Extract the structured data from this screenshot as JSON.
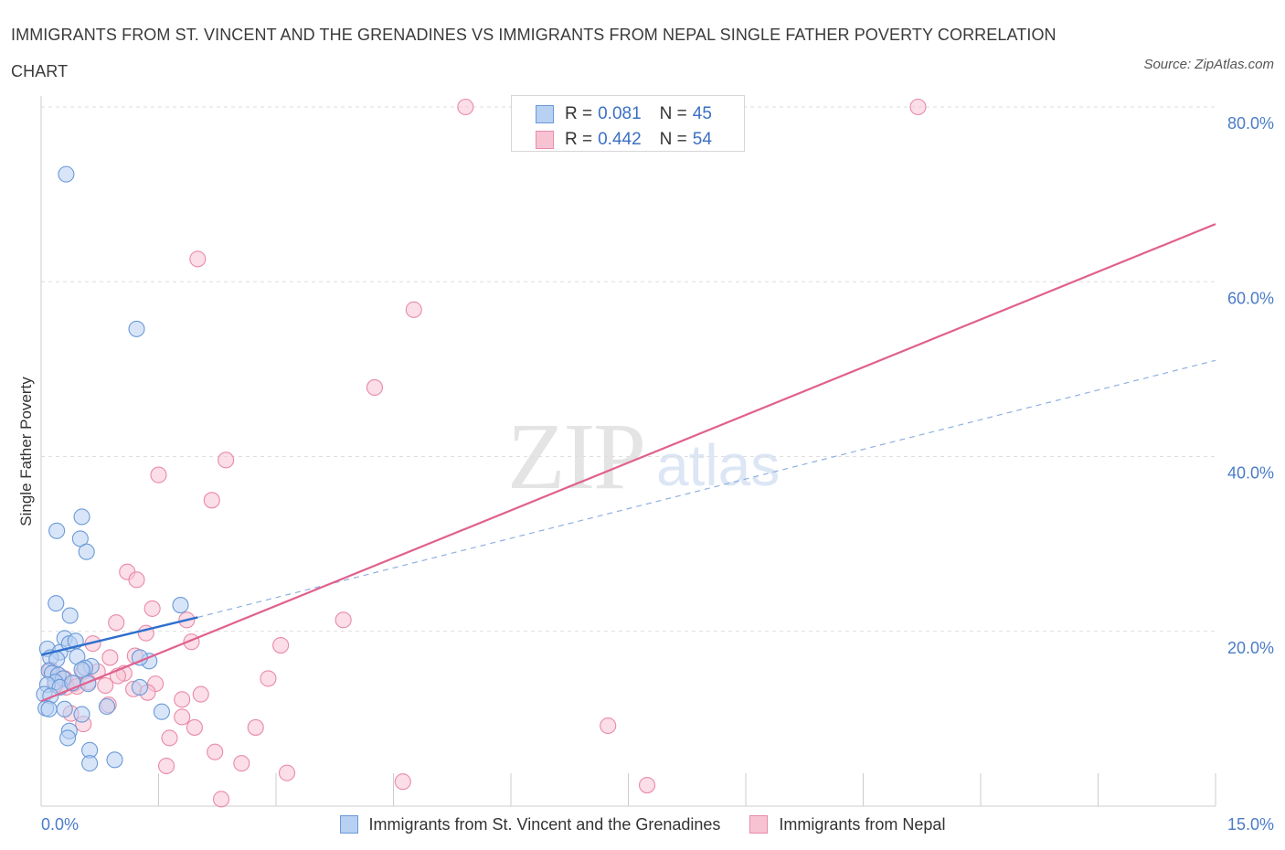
{
  "title": "IMMIGRANTS FROM ST. VINCENT AND THE GRENADINES VS IMMIGRANTS FROM NEPAL SINGLE FATHER POVERTY CORRELATION CHART",
  "source": "Source: ZipAtlas.com",
  "watermark": {
    "zip": "ZIP",
    "atlas": "atlas"
  },
  "legend_stats": [
    {
      "r_label": "R =",
      "r_value": "0.081",
      "n_label": "N =",
      "n_value": "45"
    },
    {
      "r_label": "R =",
      "r_value": "0.442",
      "n_label": "N =",
      "n_value": "54"
    }
  ],
  "colors": {
    "blue_fill": "#b8d0f2",
    "blue_stroke": "#6a9ad8",
    "blue_line": "#2f6fce",
    "pink_fill": "#f7c3d3",
    "pink_stroke": "#e98aa8",
    "pink_line": "#e0608e",
    "grid": "#dedede",
    "tick_text": "#4a7cc7"
  },
  "chart_data": {
    "type": "scatter",
    "title": "IMMIGRANTS FROM ST. VINCENT AND THE GRENADINES VS IMMIGRANTS FROM NEPAL SINGLE FATHER POVERTY CORRELATION CHART",
    "xlabel": "",
    "ylabel": "Single Father Poverty",
    "xlim": [
      0,
      15
    ],
    "ylim": [
      0,
      80
    ],
    "x_ticks": [
      "0.0%",
      "15.0%"
    ],
    "y_ticks": [
      {
        "value": 20,
        "label": "20.0%"
      },
      {
        "value": 40,
        "label": "40.0%"
      },
      {
        "value": 60,
        "label": "60.0%"
      },
      {
        "value": 80,
        "label": "80.0%"
      }
    ],
    "series": [
      {
        "name": "Immigrants from St. Vincent and the Grenadines",
        "color": "blue",
        "r": 0.081,
        "n": 45,
        "trend": {
          "x0": 0,
          "y0": 17.3,
          "x1": 2.0,
          "y1": 21.6,
          "dashed_to_x": 15,
          "dashed_to_y": 51.0
        },
        "points": [
          [
            0.32,
            72.3
          ],
          [
            1.22,
            54.6
          ],
          [
            0.2,
            31.5
          ],
          [
            0.52,
            33.1
          ],
          [
            0.5,
            30.6
          ],
          [
            0.58,
            29.1
          ],
          [
            0.19,
            23.2
          ],
          [
            0.37,
            21.8
          ],
          [
            1.78,
            23.0
          ],
          [
            0.08,
            18.0
          ],
          [
            0.24,
            17.6
          ],
          [
            0.3,
            19.2
          ],
          [
            0.36,
            18.6
          ],
          [
            0.44,
            18.9
          ],
          [
            0.12,
            17.0
          ],
          [
            0.2,
            16.8
          ],
          [
            0.46,
            17.1
          ],
          [
            0.64,
            16.0
          ],
          [
            0.56,
            15.8
          ],
          [
            0.1,
            15.5
          ],
          [
            0.14,
            15.2
          ],
          [
            0.22,
            15.0
          ],
          [
            0.28,
            14.6
          ],
          [
            0.18,
            14.2
          ],
          [
            0.08,
            13.9
          ],
          [
            0.24,
            13.6
          ],
          [
            0.6,
            14.0
          ],
          [
            1.26,
            13.6
          ],
          [
            1.38,
            16.6
          ],
          [
            1.26,
            17.0
          ],
          [
            0.04,
            12.8
          ],
          [
            0.12,
            12.6
          ],
          [
            0.06,
            11.2
          ],
          [
            0.1,
            11.1
          ],
          [
            0.3,
            11.1
          ],
          [
            0.52,
            10.5
          ],
          [
            0.84,
            11.4
          ],
          [
            1.54,
            10.8
          ],
          [
            0.36,
            8.6
          ],
          [
            0.34,
            7.8
          ],
          [
            0.62,
            6.4
          ],
          [
            0.62,
            4.9
          ],
          [
            0.94,
            5.3
          ],
          [
            0.52,
            15.6
          ],
          [
            0.4,
            14.1
          ]
        ]
      },
      {
        "name": "Immigrants from Nepal",
        "color": "pink",
        "r": 0.442,
        "n": 54,
        "trend": {
          "x0": 0,
          "y0": 12.0,
          "x1": 15,
          "y1": 66.6
        },
        "points": [
          [
            5.42,
            80.0
          ],
          [
            11.2,
            80.0
          ],
          [
            2.0,
            62.6
          ],
          [
            4.76,
            56.8
          ],
          [
            4.26,
            47.9
          ],
          [
            2.36,
            39.6
          ],
          [
            1.5,
            37.9
          ],
          [
            2.18,
            35.0
          ],
          [
            1.1,
            26.8
          ],
          [
            1.22,
            25.9
          ],
          [
            1.42,
            22.6
          ],
          [
            3.86,
            21.3
          ],
          [
            0.96,
            21.0
          ],
          [
            1.86,
            21.3
          ],
          [
            1.34,
            19.8
          ],
          [
            1.92,
            18.8
          ],
          [
            3.06,
            18.4
          ],
          [
            0.66,
            18.6
          ],
          [
            1.2,
            17.2
          ],
          [
            0.88,
            17.0
          ],
          [
            0.12,
            15.6
          ],
          [
            0.72,
            15.4
          ],
          [
            0.54,
            15.4
          ],
          [
            1.06,
            15.2
          ],
          [
            0.3,
            14.6
          ],
          [
            0.42,
            14.0
          ],
          [
            0.32,
            13.6
          ],
          [
            0.18,
            13.9
          ],
          [
            0.82,
            13.8
          ],
          [
            1.46,
            14.0
          ],
          [
            2.9,
            14.6
          ],
          [
            1.18,
            13.4
          ],
          [
            1.36,
            13.0
          ],
          [
            2.04,
            12.8
          ],
          [
            1.8,
            12.2
          ],
          [
            0.86,
            11.6
          ],
          [
            0.38,
            10.6
          ],
          [
            1.8,
            10.2
          ],
          [
            0.54,
            9.4
          ],
          [
            1.96,
            9.0
          ],
          [
            2.74,
            9.0
          ],
          [
            1.64,
            7.8
          ],
          [
            7.24,
            9.2
          ],
          [
            2.22,
            6.2
          ],
          [
            2.56,
            4.9
          ],
          [
            1.6,
            4.6
          ],
          [
            3.14,
            3.8
          ],
          [
            4.62,
            2.8
          ],
          [
            7.74,
            2.4
          ],
          [
            2.3,
            0.8
          ],
          [
            0.22,
            15.0
          ],
          [
            0.6,
            14.2
          ],
          [
            0.98,
            14.9
          ],
          [
            0.46,
            13.7
          ]
        ]
      }
    ]
  }
}
